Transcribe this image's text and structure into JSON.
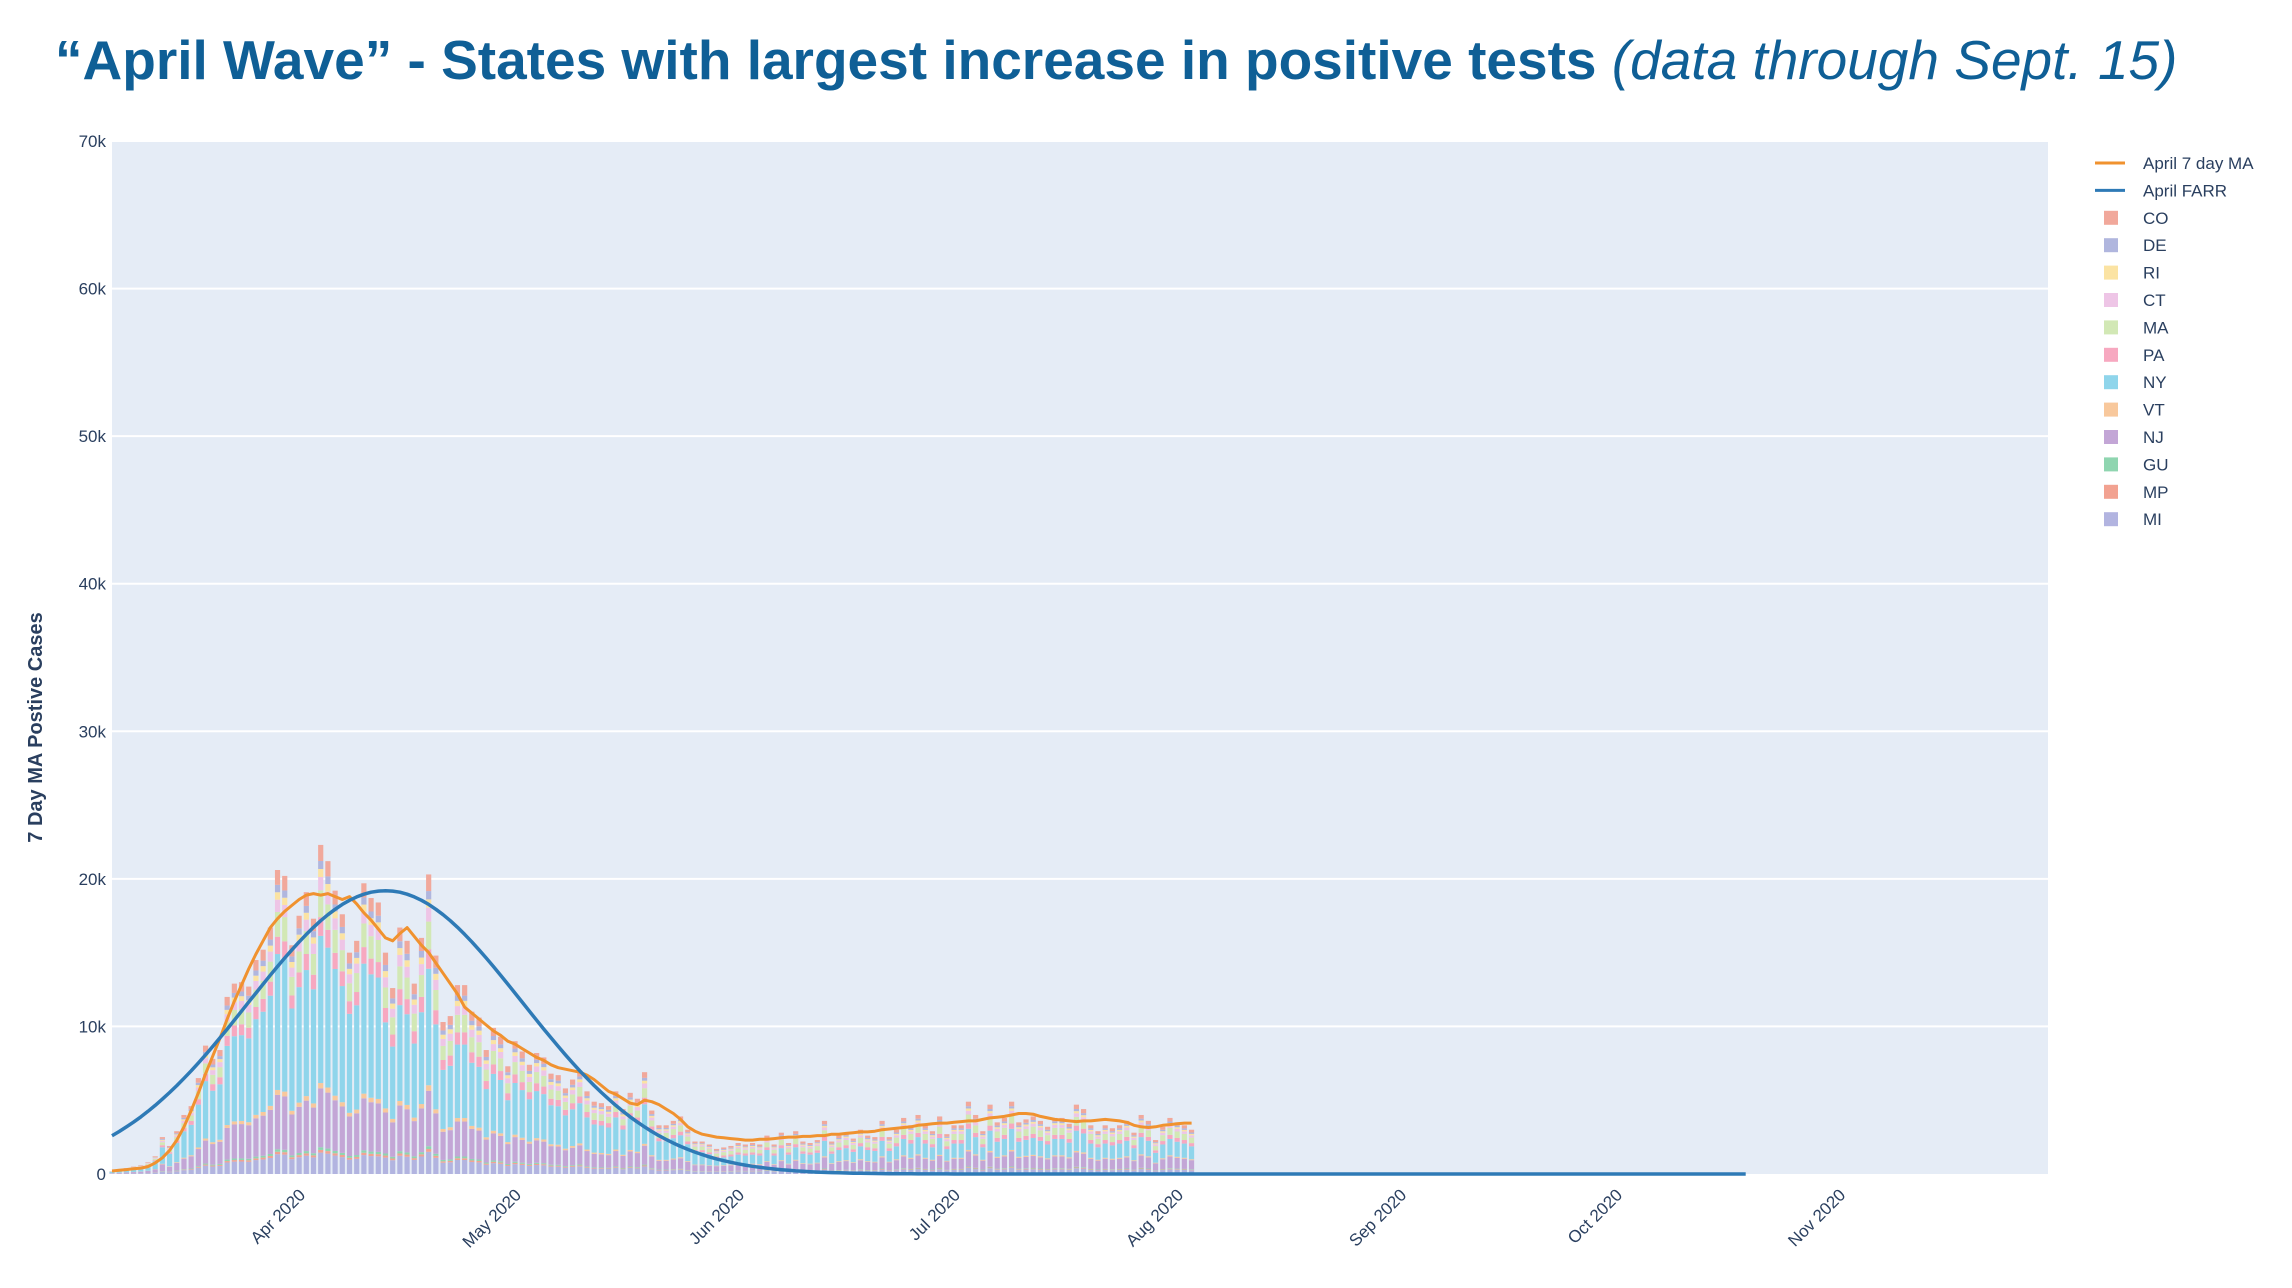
{
  "title": {
    "main": "“April Wave” - States with largest increase in positive tests",
    "note": "(data through Sept. 15)"
  },
  "chart_data": {
    "type": "bar",
    "stacked": true,
    "ylabel": "7 Day MA Postive Cases",
    "xlabel": "",
    "ylim": [
      0,
      70000
    ],
    "yticks": [
      "0",
      "10k",
      "20k",
      "30k",
      "40k",
      "50k",
      "60k",
      "70k"
    ],
    "ytick_values": [
      0,
      10000,
      20000,
      30000,
      40000,
      50000,
      60000,
      70000
    ],
    "xlim": [
      "2020-03-05",
      "2020-11-29"
    ],
    "xticks": [
      "Apr 2020",
      "May 2020",
      "Jun 2020",
      "Jul 2020",
      "Aug 2020",
      "Sep 2020",
      "Oct 2020",
      "Nov 2020"
    ],
    "xtick_dates": [
      "2020-04-01",
      "2020-05-01",
      "2020-06-01",
      "2020-07-01",
      "2020-08-01",
      "2020-09-01",
      "2020-10-01",
      "2020-11-01"
    ],
    "grid": true,
    "legend_position": "right",
    "bars": {
      "start_date": "2020-03-05",
      "state_order": [
        "MI",
        "MP",
        "GU",
        "NJ",
        "VT",
        "NY",
        "PA",
        "MA",
        "CT",
        "RI",
        "DE",
        "CO"
      ],
      "total_daily_positive": [
        200,
        300,
        400,
        500,
        600,
        800,
        1200,
        2500,
        1900,
        2900,
        4000,
        4600,
        6500,
        8700,
        7800,
        8400,
        12000,
        12900,
        13000,
        12700,
        14500,
        15200,
        16700,
        20600,
        20200,
        15500,
        17500,
        19100,
        17300,
        22300,
        21200,
        19200,
        17600,
        15000,
        15800,
        19700,
        18700,
        18400,
        15000,
        12600,
        16700,
        15800,
        12900,
        16000,
        20300,
        14800,
        10300,
        10700,
        12800,
        12800,
        11000,
        10600,
        8400,
        9900,
        9300,
        7300,
        9000,
        8300,
        7400,
        8200,
        7900,
        6800,
        6700,
        5800,
        6400,
        7000,
        5600,
        4900,
        4800,
        4600,
        5600,
        4400,
        5500,
        5100,
        6900,
        4300,
        3300,
        3300,
        3600,
        3900,
        3000,
        2200,
        2200,
        2000,
        1700,
        1800,
        1900,
        2100,
        2000,
        2100,
        2000,
        2600,
        2000,
        2800,
        2100,
        2900,
        2200,
        2100,
        2300,
        3600,
        2200,
        2600,
        2800,
        2400,
        3000,
        2600,
        2500,
        3600,
        2500,
        3000,
        3800,
        3300,
        4000,
        3300,
        2900,
        3900,
        2700,
        3300,
        3300,
        4900,
        4000,
        2900,
        4700,
        3500,
        3800,
        4900,
        3500,
        3700,
        3900,
        3600,
        3200,
        3800,
        3800,
        3400,
        4700,
        4400,
        3300,
        2900,
        3300,
        3100,
        3300,
        3600,
        2800,
        4000,
        3600,
        2300,
        3200,
        3800,
        3500,
        3300,
        3000
      ],
      "colors": {
        "MI": "#b2b4e0",
        "MP": "#f2a291",
        "GU": "#8fd5b0",
        "NJ": "#c3a6d6",
        "VT": "#f8c89c",
        "NY": "#8fd5eb",
        "PA": "#f7a8c0",
        "MA": "#d2e8b5",
        "CT": "#eec5e6",
        "RI": "#fbe3a3",
        "DE": "#b0b6de",
        "CO": "#f1a89b"
      }
    },
    "series": [
      {
        "name": "April 7 day MA",
        "color": "#f0922f",
        "start_date": "2020-03-05",
        "values": [
          200,
          250,
          300,
          350,
          400,
          500,
          750,
          1100,
          1600,
          2300,
          3200,
          4300,
          5500,
          6800,
          8000,
          9200,
          10500,
          11700,
          12800,
          13900,
          14900,
          15800,
          16700,
          17300,
          17800,
          18200,
          18600,
          18900,
          19000,
          18900,
          19000,
          18800,
          18600,
          18800,
          18300,
          17700,
          17200,
          16600,
          16000,
          15800,
          16300,
          16700,
          16100,
          15500,
          15000,
          14300,
          13600,
          12900,
          12200,
          11300,
          10900,
          10500,
          10100,
          9700,
          9400,
          9000,
          8800,
          8500,
          8200,
          7900,
          7700,
          7400,
          7200,
          7100,
          7000,
          6900,
          6700,
          6400,
          6000,
          5600,
          5400,
          5100,
          4800,
          4700,
          5000,
          4900,
          4700,
          4400,
          4100,
          3700,
          3200,
          2900,
          2700,
          2600,
          2500,
          2450,
          2400,
          2350,
          2300,
          2300,
          2350,
          2350,
          2400,
          2450,
          2500,
          2500,
          2550,
          2550,
          2600,
          2600,
          2700,
          2700,
          2750,
          2800,
          2850,
          2850,
          2900,
          3000,
          3050,
          3100,
          3150,
          3200,
          3300,
          3350,
          3400,
          3450,
          3450,
          3500,
          3550,
          3600,
          3600,
          3700,
          3800,
          3850,
          3900,
          4000,
          4100,
          4100,
          4050,
          3900,
          3800,
          3700,
          3650,
          3600,
          3550,
          3600,
          3600,
          3650,
          3700,
          3650,
          3600,
          3500,
          3300,
          3200,
          3150,
          3200,
          3300,
          3350,
          3400,
          3450,
          3450
        ]
      },
      {
        "name": "April FARR",
        "color": "#2e7ab6",
        "start_date": "2020-03-05",
        "peak_date": "2020-04-12",
        "peak": 19200,
        "sigma_days": 19,
        "end_date": "2020-10-18"
      }
    ],
    "legend": [
      "April 7 day MA",
      "April FARR",
      "CO",
      "DE",
      "RI",
      "CT",
      "MA",
      "PA",
      "NY",
      "VT",
      "NJ",
      "GU",
      "MP",
      "MI"
    ],
    "legend_colors": [
      "#f0922f",
      "#2e7ab6",
      "#f1a89b",
      "#b0b6de",
      "#fbe3a3",
      "#eec5e6",
      "#d2e8b5",
      "#f7a8c0",
      "#8fd5eb",
      "#f8c89c",
      "#c3a6d6",
      "#8fd5b0",
      "#f2a291",
      "#b2b4e0"
    ]
  }
}
